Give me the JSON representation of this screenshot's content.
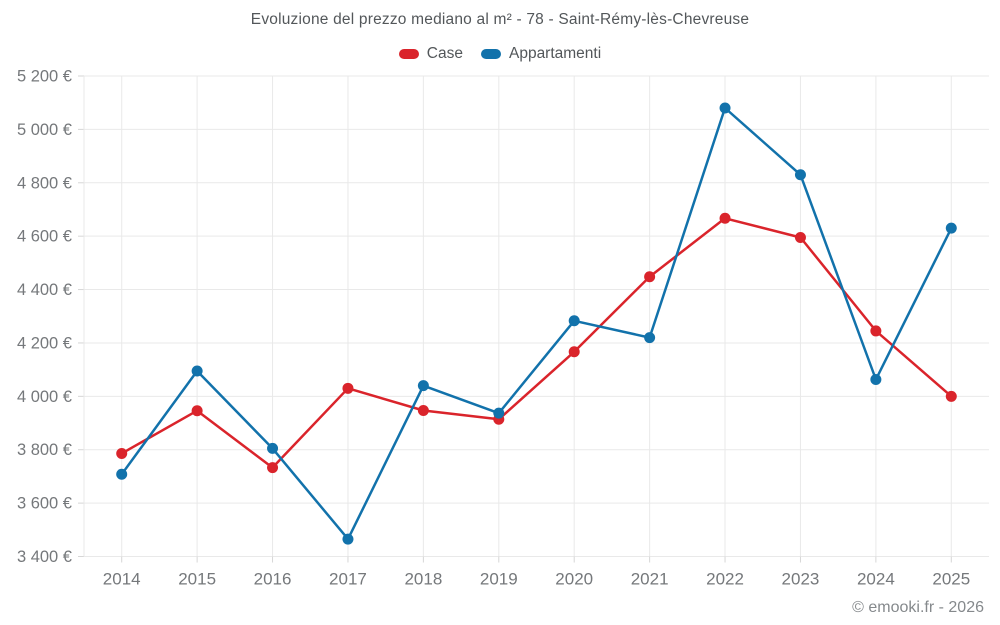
{
  "page": {
    "footer": "© emooki.fr - 2026"
  },
  "chart_data": {
    "type": "line",
    "title": "Evoluzione del prezzo mediano al m² - 78 - Saint-Rémy-lès-Chevreuse",
    "categories": [
      "2014",
      "2015",
      "2016",
      "2017",
      "2018",
      "2019",
      "2020",
      "2021",
      "2022",
      "2023",
      "2024",
      "2025"
    ],
    "series": [
      {
        "name": "Case",
        "color": "#da242b",
        "values": [
          3786,
          3946,
          3733,
          4030,
          3947,
          3914,
          4167,
          4448,
          4667,
          4595,
          4245,
          4000
        ]
      },
      {
        "name": "Appartamenti",
        "color": "#1272ab",
        "values": [
          3708,
          4095,
          3805,
          3465,
          4040,
          3937,
          4283,
          4220,
          5080,
          4830,
          4063,
          4630
        ]
      }
    ],
    "ylim": [
      3400,
      5200
    ],
    "y_tick_step": 200,
    "y_tick_labels": [
      "3 400 €",
      "3 600 €",
      "3 800 €",
      "4 000 €",
      "4 200 €",
      "4 400 €",
      "4 600 €",
      "4 800 €",
      "5 000 €",
      "5 200 €"
    ],
    "xlabel": "",
    "ylabel": "",
    "grid": true,
    "legend_position": "top"
  },
  "style": {
    "grid_color": "#e9e9e9",
    "tick_color": "#d6d6d6",
    "axis_label_color": "#75787b",
    "title_color": "#53575a",
    "footer_color": "#85898c",
    "marker_radius": 5.5,
    "line_width": 2.5
  }
}
